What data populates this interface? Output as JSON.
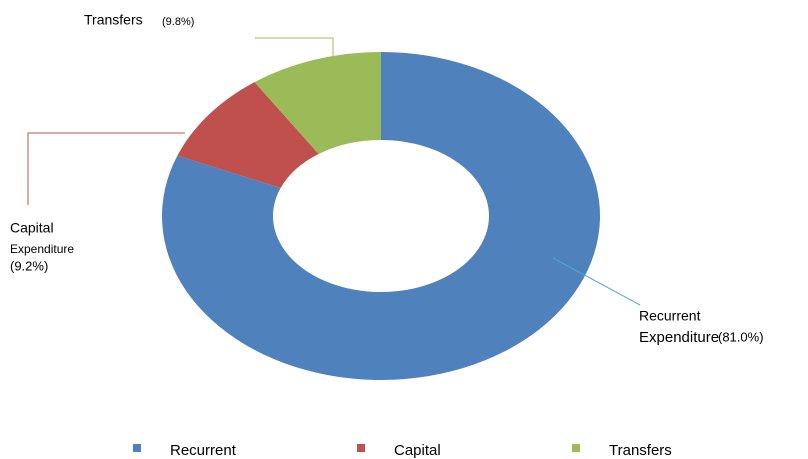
{
  "chart_data": {
    "type": "donut",
    "categories": [
      "Recurrent",
      "Capital",
      "Transfers"
    ],
    "labels": [
      [
        "Recurrent",
        "Expenditure"
      ],
      [
        "Capital",
        "Expenditure"
      ],
      [
        "Transfers"
      ]
    ],
    "values": [
      81.0,
      9.2,
      9.8
    ],
    "value_labels": [
      "(81.0%)",
      "(9.2%)",
      "(9.8%)"
    ],
    "colors": [
      "#4f81bd",
      "#c0504d",
      "#9bbb59"
    ]
  }
}
